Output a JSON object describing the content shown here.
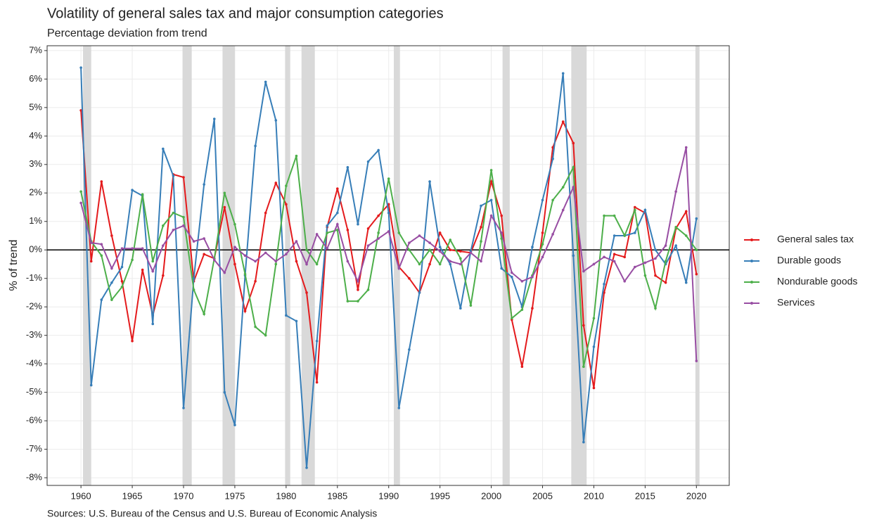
{
  "chart_data": {
    "type": "line",
    "title": "Volatility of general sales tax and major consumption categories",
    "subtitle": "Percentage deviation from trend",
    "y_label": "% of trend",
    "caption": "Sources: U.S. Bureau of the Census and U.S. Bureau of Economic Analysis",
    "x": [
      1960,
      1961,
      1962,
      1963,
      1964,
      1965,
      1966,
      1967,
      1968,
      1969,
      1970,
      1971,
      1972,
      1973,
      1974,
      1975,
      1976,
      1977,
      1978,
      1979,
      1980,
      1981,
      1982,
      1983,
      1984,
      1985,
      1986,
      1987,
      1988,
      1989,
      1990,
      1991,
      1992,
      1993,
      1994,
      1995,
      1996,
      1997,
      1998,
      1999,
      2000,
      2001,
      2002,
      2003,
      2004,
      2005,
      2006,
      2007,
      2008,
      2009,
      2010,
      2011,
      2012,
      2013,
      2014,
      2015,
      2016,
      2017,
      2018,
      2019,
      2020
    ],
    "series": [
      {
        "name": "General sales tax",
        "color": "#e41a1c",
        "values": [
          4.9,
          -0.4,
          2.4,
          0.5,
          -1.1,
          -3.2,
          -0.7,
          -2.3,
          -0.9,
          2.65,
          2.55,
          -1.1,
          -0.15,
          -0.3,
          1.5,
          -0.5,
          -2.15,
          -1.1,
          1.3,
          2.35,
          1.6,
          -0.4,
          -1.5,
          -4.65,
          0.8,
          2.15,
          0.7,
          -1.4,
          0.75,
          1.2,
          1.6,
          -0.6,
          -1.0,
          -1.5,
          -0.5,
          0.6,
          0.0,
          -0.05,
          -0.1,
          0.8,
          2.4,
          1.2,
          -2.45,
          -4.1,
          -2.05,
          0.6,
          3.6,
          4.5,
          3.75,
          -2.65,
          -4.85,
          -1.5,
          -0.15,
          -0.25,
          1.5,
          1.3,
          -0.9,
          -1.15,
          0.75,
          1.35,
          -0.85
        ]
      },
      {
        "name": "Durable goods",
        "color": "#377eb8",
        "values": [
          6.4,
          -4.75,
          -1.75,
          -1.15,
          -0.6,
          2.1,
          1.9,
          -2.6,
          3.55,
          2.6,
          -5.55,
          -1.0,
          2.3,
          4.6,
          -5.0,
          -6.15,
          -0.9,
          3.65,
          5.9,
          4.55,
          -2.3,
          -2.5,
          -7.65,
          -3.2,
          0.85,
          1.3,
          2.9,
          0.9,
          3.1,
          3.5,
          1.3,
          -5.55,
          -3.5,
          -1.5,
          2.4,
          0.1,
          -0.5,
          -2.05,
          -0.05,
          1.55,
          1.75,
          -0.65,
          -0.95,
          -2.0,
          0.1,
          1.75,
          3.2,
          6.2,
          -0.2,
          -6.75,
          -3.4,
          -1.2,
          0.5,
          0.5,
          0.6,
          1.4,
          0.0,
          -0.5,
          0.15,
          -1.15,
          1.1
        ]
      },
      {
        "name": "Nondurable goods",
        "color": "#4daf4a",
        "values": [
          2.05,
          0.3,
          -0.2,
          -1.75,
          -1.3,
          -0.35,
          1.95,
          -0.4,
          0.85,
          1.3,
          1.15,
          -1.4,
          -2.25,
          -0.3,
          2.0,
          0.9,
          -0.85,
          -2.7,
          -3.0,
          -0.5,
          2.25,
          3.3,
          0.0,
          -0.5,
          0.6,
          0.7,
          -1.8,
          -1.8,
          -1.4,
          0.6,
          2.5,
          0.6,
          0.0,
          -0.5,
          0.0,
          -0.5,
          0.35,
          -0.3,
          -1.95,
          0.3,
          2.8,
          0.4,
          -2.4,
          -2.1,
          -0.9,
          0.2,
          1.75,
          2.2,
          2.9,
          -4.1,
          -2.4,
          1.2,
          1.2,
          0.5,
          1.4,
          -0.9,
          -2.05,
          -0.4,
          0.8,
          0.5,
          0.0
        ]
      },
      {
        "name": "Services",
        "color": "#984ea3",
        "values": [
          1.65,
          0.25,
          0.2,
          -0.65,
          0.05,
          0.05,
          0.05,
          -0.75,
          0.15,
          0.7,
          0.85,
          0.3,
          0.4,
          -0.35,
          -0.8,
          0.1,
          -0.2,
          -0.4,
          -0.1,
          -0.4,
          -0.15,
          0.3,
          -0.5,
          0.55,
          0.05,
          0.9,
          -0.4,
          -1.1,
          0.15,
          0.4,
          0.65,
          -0.65,
          0.25,
          0.5,
          0.25,
          -0.05,
          -0.4,
          -0.5,
          -0.1,
          -0.4,
          1.2,
          0.6,
          -0.8,
          -1.1,
          -0.95,
          -0.25,
          0.55,
          1.4,
          2.2,
          -0.75,
          -0.5,
          -0.25,
          -0.4,
          -1.1,
          -0.6,
          -0.45,
          -0.3,
          0.15,
          2.05,
          3.6,
          -3.9
        ]
      }
    ],
    "recessions": [
      [
        1960.2,
        1961.0
      ],
      [
        1969.9,
        1970.8
      ],
      [
        1973.8,
        1975.0
      ],
      [
        1979.9,
        1980.4
      ],
      [
        1981.5,
        1982.8
      ],
      [
        1990.5,
        1991.1
      ],
      [
        2001.1,
        2001.8
      ],
      [
        2007.8,
        2009.3
      ],
      [
        2019.9,
        2020.3
      ]
    ],
    "recession_color": "#d9d9d9",
    "hline": 0,
    "xlim": [
      1956.7,
      2023.2
    ],
    "ylim": [
      -8.27,
      7.17
    ],
    "xticks": [
      1960,
      1965,
      1970,
      1975,
      1980,
      1985,
      1990,
      1995,
      2000,
      2005,
      2010,
      2015,
      2020
    ],
    "yticks": [
      {
        "value": 7,
        "label": "7%"
      },
      {
        "value": 6,
        "label": "6%"
      },
      {
        "value": 5,
        "label": "5%"
      },
      {
        "value": 4,
        "label": "4%"
      },
      {
        "value": 3,
        "label": "3%"
      },
      {
        "value": 2,
        "label": "2%"
      },
      {
        "value": 1,
        "label": "1%"
      },
      {
        "value": 0,
        "label": "0%"
      },
      {
        "value": -1,
        "label": "-1%"
      },
      {
        "value": -2,
        "label": "-2%"
      },
      {
        "value": -3,
        "label": "-3%"
      },
      {
        "value": -4,
        "label": "-4%"
      },
      {
        "value": -5,
        "label": "-5%"
      },
      {
        "value": -6,
        "label": "-6%"
      },
      {
        "value": -7,
        "label": "-7%"
      },
      {
        "value": -8,
        "label": "-8%"
      }
    ],
    "grid": true,
    "legend": "right"
  }
}
